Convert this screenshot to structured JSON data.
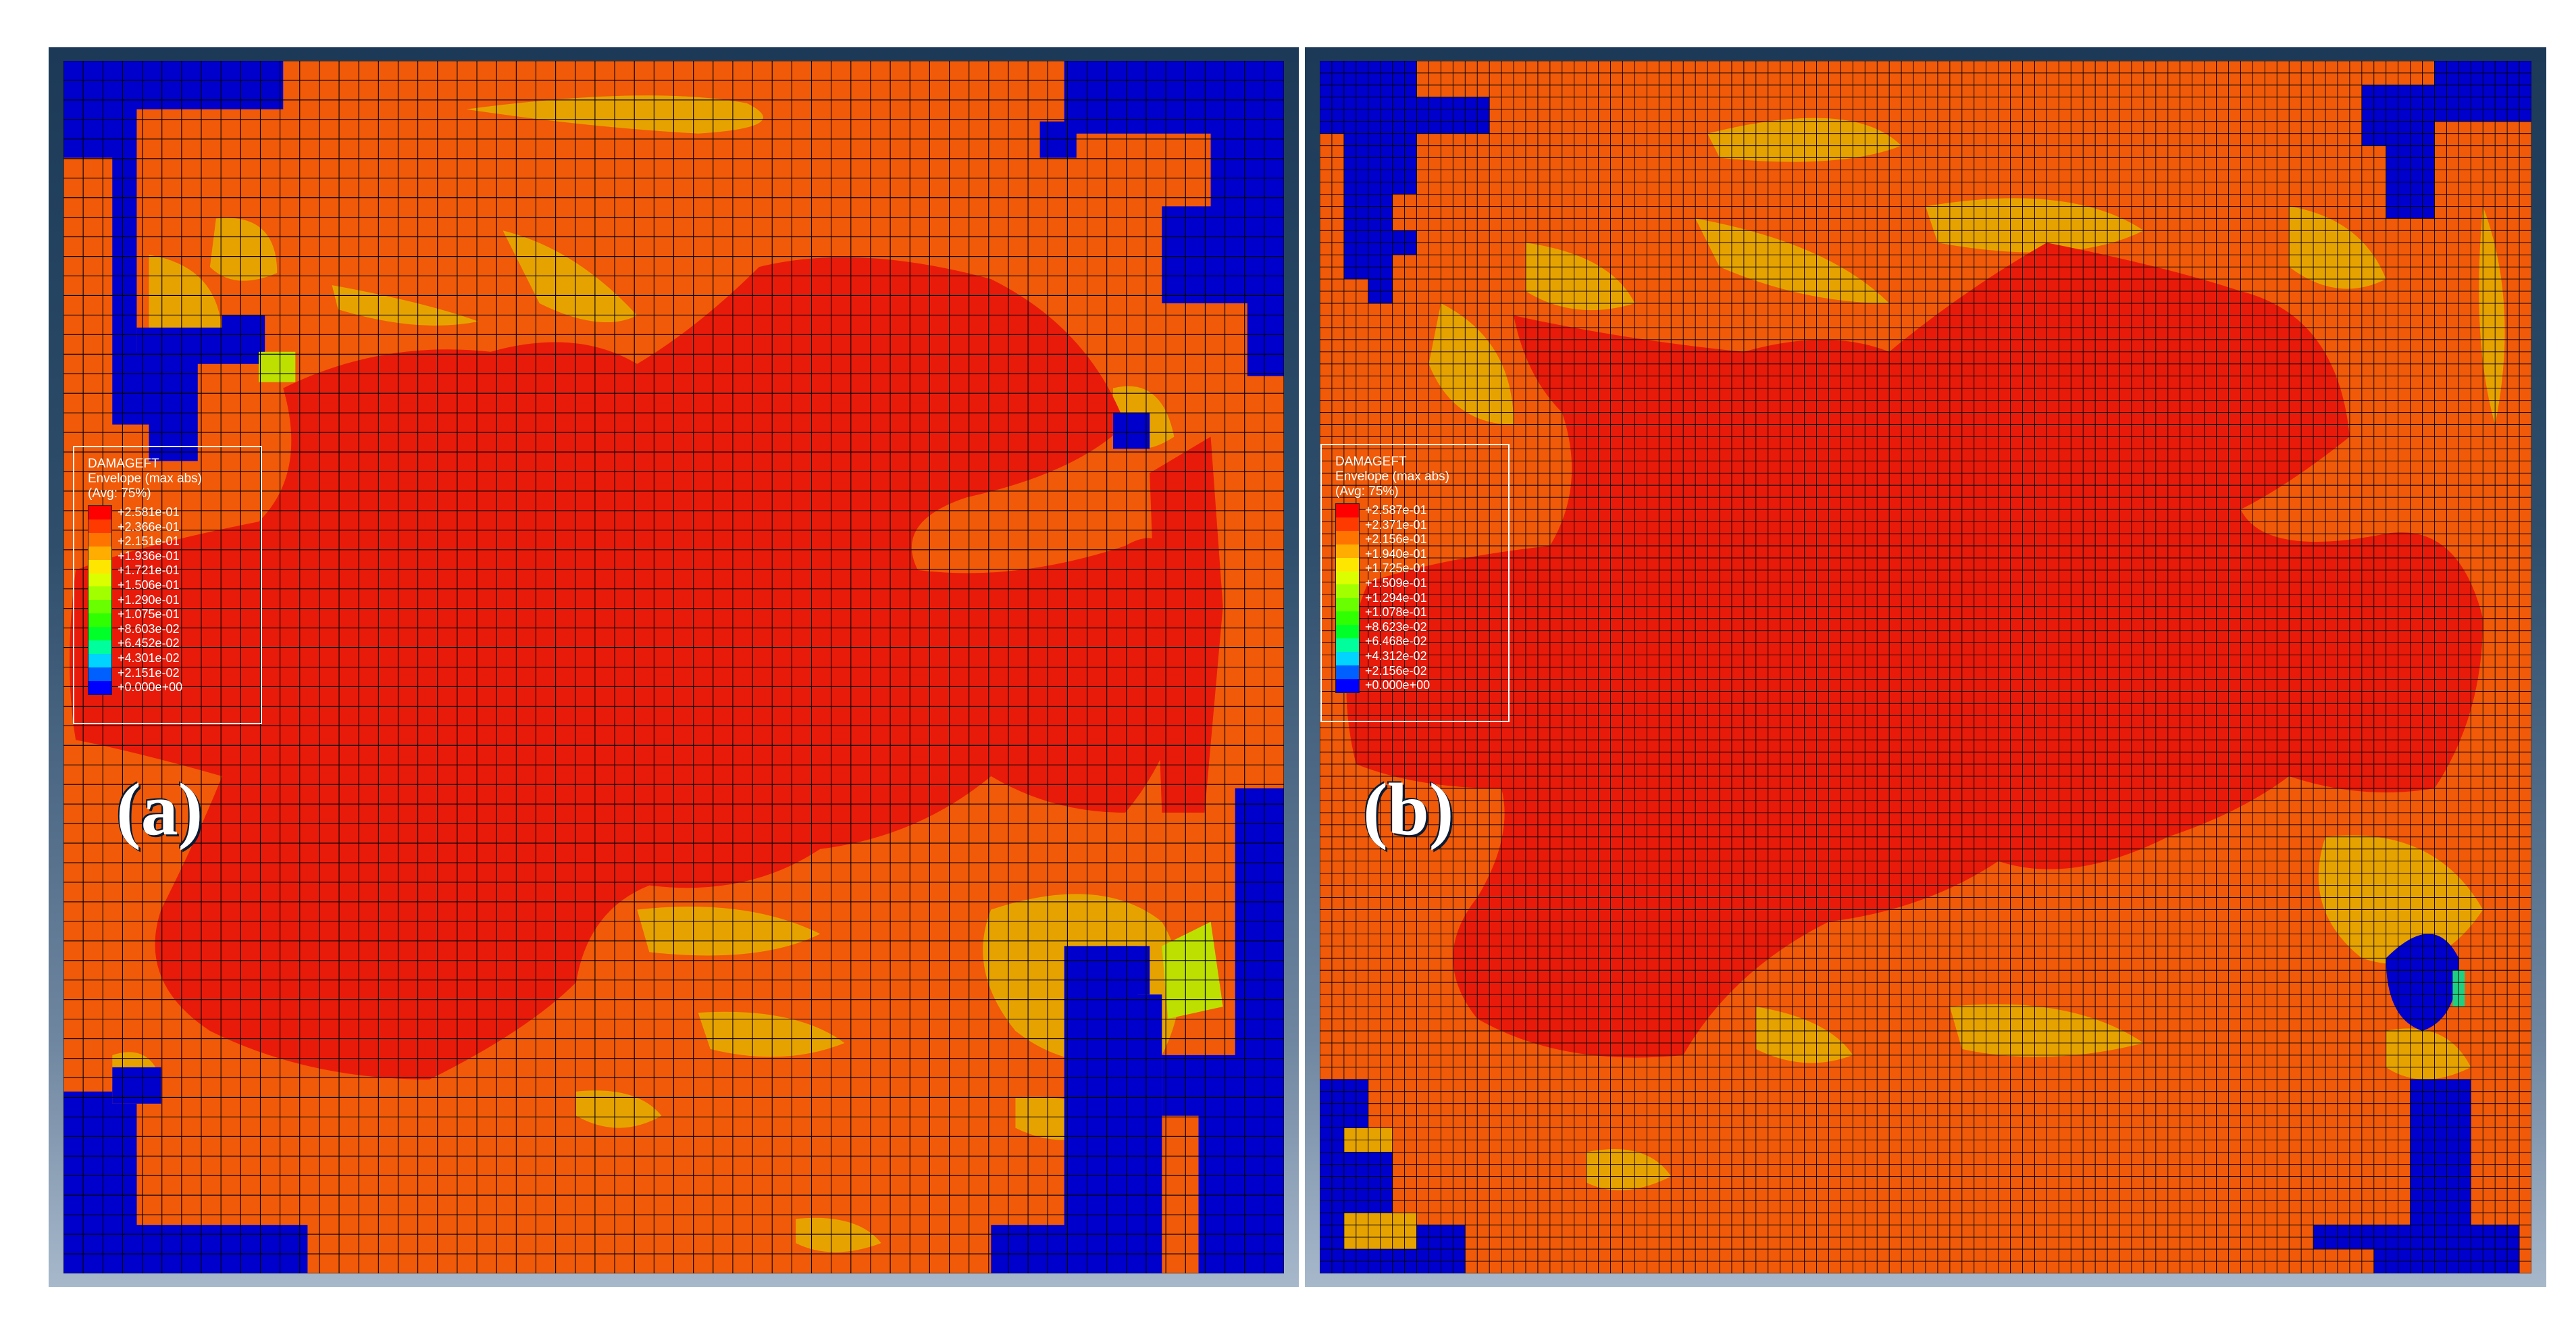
{
  "panels": [
    {
      "label": "(a)",
      "legend": {
        "title": "DAMAGEFT",
        "subtitle": "Envelope (max abs)",
        "avg": "(Avg: 75%)",
        "values": [
          "+2.581e-01",
          "+2.366e-01",
          "+2.151e-01",
          "+1.936e-01",
          "+1.721e-01",
          "+1.506e-01",
          "+1.290e-01",
          "+1.075e-01",
          "+8.603e-02",
          "+6.452e-02",
          "+4.301e-02",
          "+2.151e-02",
          "+0.000e+00"
        ]
      }
    },
    {
      "label": "(b)",
      "legend": {
        "title": "DAMAGEFT",
        "subtitle": "Envelope (max abs)",
        "avg": "(Avg: 75%)",
        "values": [
          "+2.587e-01",
          "+2.371e-01",
          "+2.156e-01",
          "+1.940e-01",
          "+1.725e-01",
          "+1.509e-01",
          "+1.294e-01",
          "+1.078e-01",
          "+8.623e-02",
          "+6.468e-02",
          "+4.312e-02",
          "+2.156e-02",
          "+0.000e+00"
        ]
      }
    }
  ],
  "colors": {
    "contour_bands": [
      "#ff0000",
      "#ff3a00",
      "#ff7300",
      "#ffad00",
      "#ffe600",
      "#dcff00",
      "#a2ff00",
      "#69ff00",
      "#2fff00",
      "#00ff29",
      "#00ff9c",
      "#00d4ff",
      "#005fff",
      "#0000ff"
    ],
    "region_blue": "#0000cc",
    "region_red": "#e81b0b",
    "region_orange": "#f05a08",
    "region_yellow": "#e6a300",
    "mesh_line": "#000000"
  },
  "meshes": [
    {
      "cols": 62,
      "rows": 62
    },
    {
      "cols": 100,
      "rows": 100
    }
  ]
}
